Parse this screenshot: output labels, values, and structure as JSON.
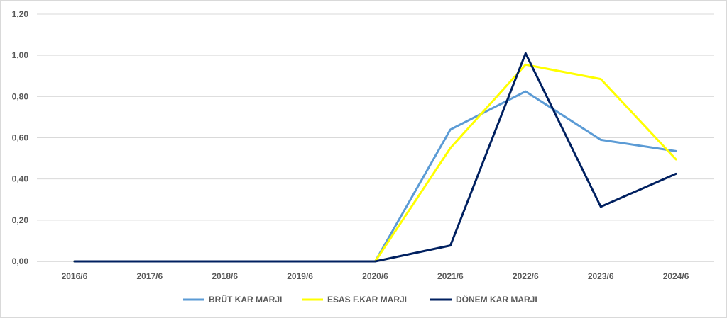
{
  "chart_data": {
    "type": "line",
    "categories": [
      "2016/6",
      "2017/6",
      "2018/6",
      "2019/6",
      "2020/6",
      "2021/6",
      "2022/6",
      "2023/6",
      "2024/6"
    ],
    "ylim": [
      0,
      1.2
    ],
    "yticks": [
      "0,00",
      "0,20",
      "0,40",
      "0,60",
      "0,80",
      "1,00",
      "1,20"
    ],
    "ytick_values": [
      0,
      0.2,
      0.4,
      0.6,
      0.8,
      1.0,
      1.2
    ],
    "grid": true,
    "legend_position": "bottom",
    "series": [
      {
        "name": "BRÜT KAR MARJI",
        "color": "#5b9bd5",
        "values": [
          0,
          0,
          0,
          0,
          0,
          0.64,
          0.825,
          0.59,
          0.535
        ]
      },
      {
        "name": "ESAS F.KAR MARJI",
        "color": "#ffff00",
        "values": [
          0,
          0,
          0,
          0,
          0,
          0.55,
          0.955,
          0.885,
          0.495
        ]
      },
      {
        "name": "DÖNEM KAR MARJI",
        "color": "#002060",
        "values": [
          0,
          0,
          0,
          0,
          0,
          0.077,
          1.01,
          0.265,
          0.425
        ]
      }
    ]
  }
}
